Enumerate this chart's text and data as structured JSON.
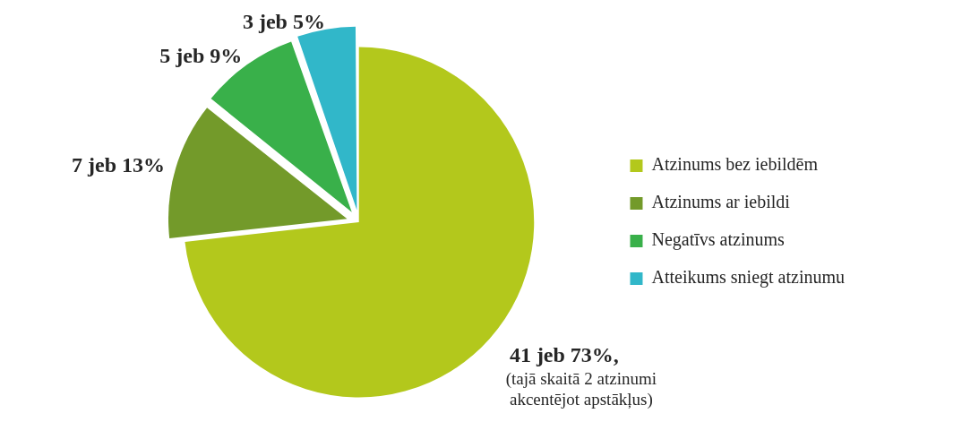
{
  "chart_data": {
    "type": "pie",
    "categories": [
      "Atzinums bez iebildēm",
      "Atzinums ar iebildi",
      "Negatīvs atzinums",
      "Atteikums sniegt atzinumu"
    ],
    "values": [
      41,
      7,
      5,
      3
    ],
    "colors": [
      "#b3c81c",
      "#739a2a",
      "#39b04a",
      "#31b7c9"
    ],
    "value_labels": [
      "41 jeb 73%,",
      "7 jeb 13%",
      "5 jeb 9%",
      "3 jeb 5%"
    ],
    "annotations": [
      "(tajā skaitā 2 atzinumi akcentējot apstākļus)"
    ],
    "legend": "right"
  }
}
